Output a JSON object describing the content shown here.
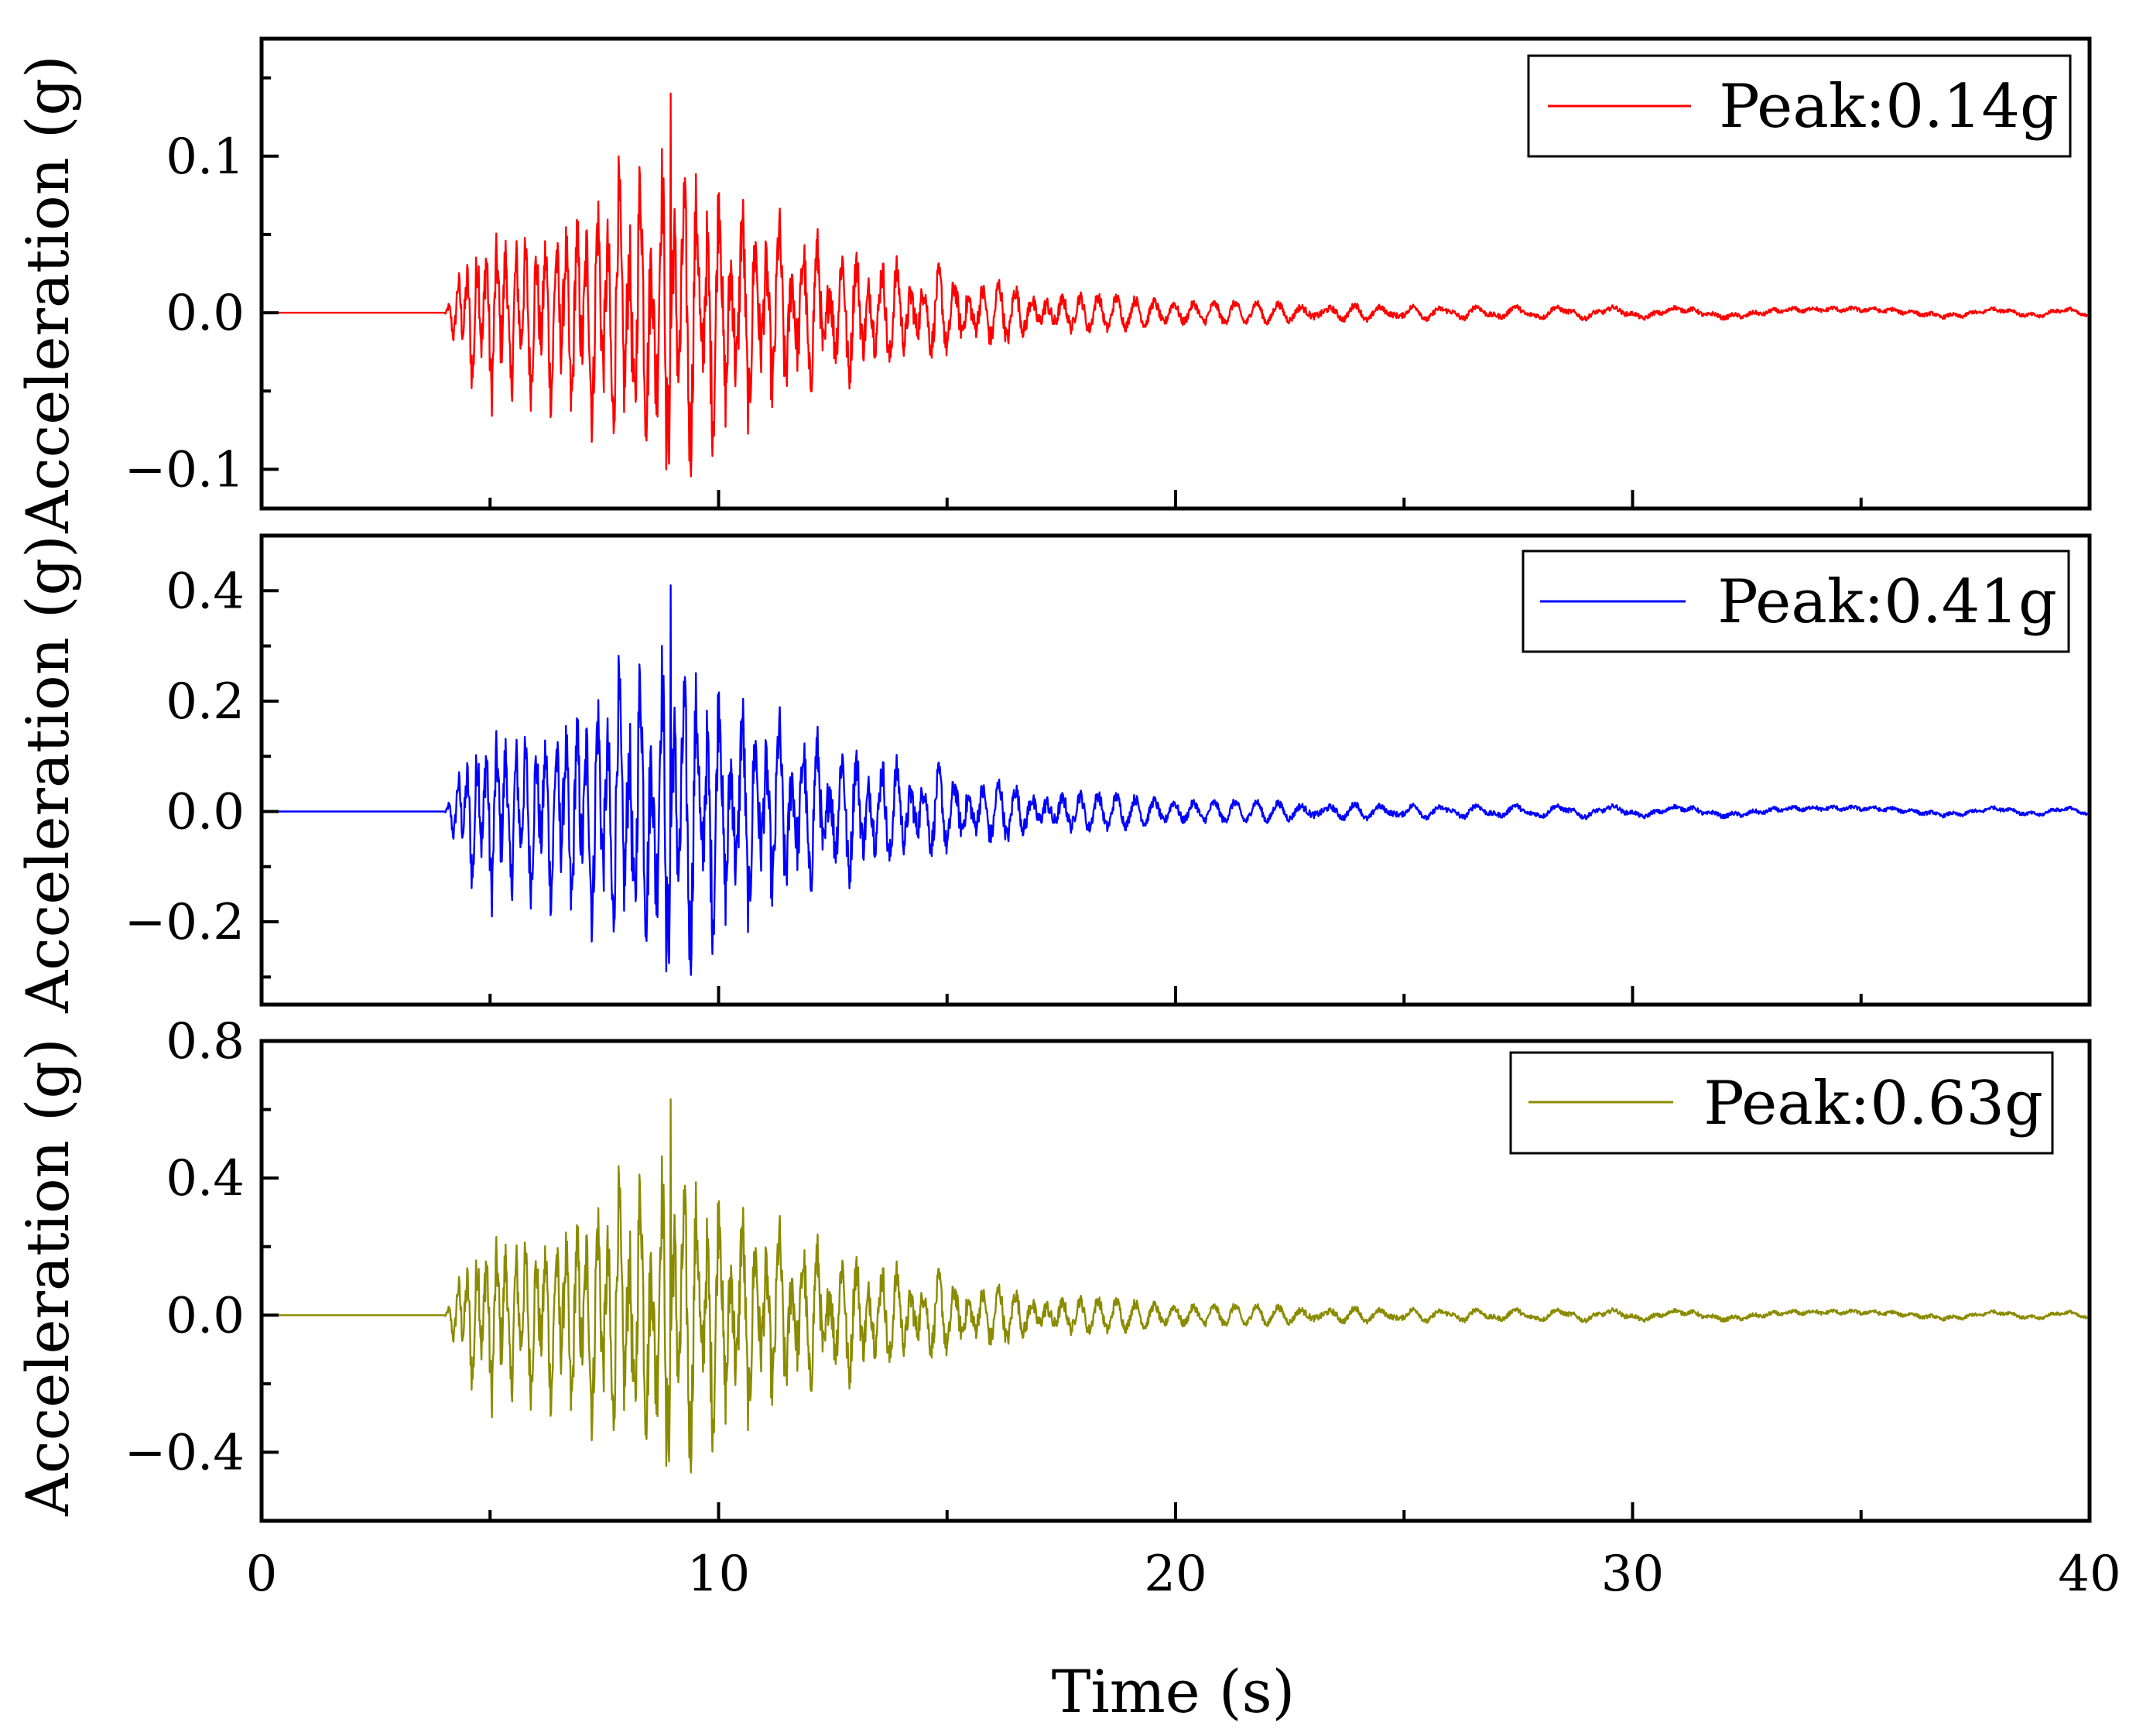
{
  "chart_data": [
    {
      "type": "line",
      "panel": "top",
      "title": "",
      "ylabel": "Acceleration (g)",
      "xlabel": "",
      "xlim": [
        0,
        40
      ],
      "ylim": [
        -0.125,
        0.175
      ],
      "yticks": [
        -0.1,
        0.0,
        0.1
      ],
      "ytick_labels": [
        "−0.1",
        "0.0",
        "0.1"
      ],
      "yminor_step": 0.05,
      "series": [
        {
          "name": "Peak:0.14g",
          "color": "#ff0000",
          "peak": 0.14,
          "peak_time": 8.95,
          "min": -0.1,
          "onset": 4.0,
          "end": 40,
          "envelope": [
            [
              0,
              0
            ],
            [
              4.0,
              0
            ],
            [
              4.3,
              0.025
            ],
            [
              4.8,
              0.055
            ],
            [
              6.0,
              0.05
            ],
            [
              7.2,
              0.07
            ],
            [
              7.8,
              0.085
            ],
            [
              8.6,
              0.09
            ],
            [
              9.0,
              0.095
            ],
            [
              9.8,
              0.085
            ],
            [
              11.0,
              0.06
            ],
            [
              12.5,
              0.045
            ],
            [
              14.0,
              0.03
            ],
            [
              16.0,
              0.02
            ],
            [
              18.0,
              0.012
            ],
            [
              20.0,
              0.008
            ],
            [
              25.0,
              0.005
            ],
            [
              30.0,
              0.004
            ],
            [
              40.0,
              0.003
            ]
          ]
        }
      ]
    },
    {
      "type": "line",
      "panel": "middle",
      "title": "",
      "ylabel": "Acceleration (g)",
      "xlabel": "",
      "xlim": [
        0,
        40
      ],
      "ylim": [
        -0.35,
        0.5
      ],
      "yticks": [
        -0.2,
        0.0,
        0.2,
        0.4
      ],
      "ytick_labels": [
        "−0.2",
        "0.0",
        "0.2",
        "0.4"
      ],
      "yminor_step": 0.1,
      "series": [
        {
          "name": "Peak:0.41g",
          "color": "#0000ff",
          "peak": 0.41,
          "peak_time": 8.95,
          "min": -0.29,
          "onset": 4.0,
          "end": 40,
          "envelope": [
            [
              0,
              0
            ],
            [
              4.0,
              0
            ],
            [
              4.3,
              0.07
            ],
            [
              4.8,
              0.16
            ],
            [
              6.0,
              0.14
            ],
            [
              7.2,
              0.2
            ],
            [
              7.8,
              0.24
            ],
            [
              8.6,
              0.26
            ],
            [
              9.0,
              0.27
            ],
            [
              9.8,
              0.24
            ],
            [
              11.0,
              0.17
            ],
            [
              12.5,
              0.13
            ],
            [
              14.0,
              0.085
            ],
            [
              16.0,
              0.055
            ],
            [
              18.0,
              0.035
            ],
            [
              20.0,
              0.022
            ],
            [
              25.0,
              0.014
            ],
            [
              30.0,
              0.011
            ],
            [
              40.0,
              0.008
            ]
          ]
        }
      ]
    },
    {
      "type": "line",
      "panel": "bottom",
      "title": "",
      "ylabel": "Acceleration (g)",
      "xlabel": "Time (s)",
      "xlim": [
        0,
        40
      ],
      "ylim": [
        -0.6,
        0.8
      ],
      "yticks": [
        -0.4,
        0.0,
        0.4,
        0.8
      ],
      "ytick_labels": [
        "−0.4",
        "0.0",
        "0.4",
        "0.8"
      ],
      "yminor_step": 0.2,
      "xticks": [
        0,
        10,
        20,
        30,
        40
      ],
      "xtick_labels": [
        "0",
        "10",
        "20",
        "30",
        "40"
      ],
      "xminor_step": 5,
      "series": [
        {
          "name": "Peak:0.63g",
          "color": "#8b8b00",
          "peak": 0.63,
          "peak_time": 8.95,
          "min": -0.44,
          "onset": 4.0,
          "end": 40,
          "envelope": [
            [
              0,
              0
            ],
            [
              4.0,
              0
            ],
            [
              4.3,
              0.11
            ],
            [
              4.8,
              0.25
            ],
            [
              6.0,
              0.22
            ],
            [
              7.2,
              0.31
            ],
            [
              7.8,
              0.37
            ],
            [
              8.6,
              0.4
            ],
            [
              9.0,
              0.42
            ],
            [
              9.8,
              0.37
            ],
            [
              11.0,
              0.26
            ],
            [
              12.5,
              0.2
            ],
            [
              14.0,
              0.13
            ],
            [
              16.0,
              0.085
            ],
            [
              18.0,
              0.052
            ],
            [
              20.0,
              0.034
            ],
            [
              25.0,
              0.021
            ],
            [
              30.0,
              0.017
            ],
            [
              40.0,
              0.012
            ]
          ]
        }
      ]
    }
  ]
}
